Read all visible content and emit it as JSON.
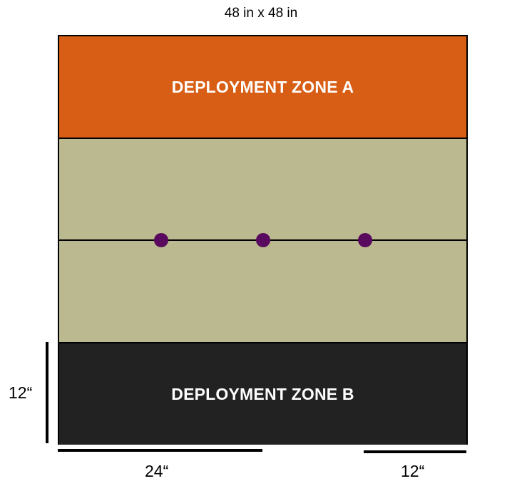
{
  "title": "48 in x 48 in",
  "zones": {
    "a_label": "DEPLOYMENT ZONE A",
    "b_label": "DEPLOYMENT ZONE B"
  },
  "dimensions": {
    "zone_depth_label": "12“",
    "center_offset_label": "24“",
    "edge_offset_label": "12“"
  },
  "objectives": [
    {
      "name": "objective-marker-left"
    },
    {
      "name": "objective-marker-center"
    },
    {
      "name": "objective-marker-right"
    }
  ],
  "colors": {
    "zone_a": "#d85e16",
    "no_mans_land": "#bbb98f",
    "zone_b": "#222222",
    "objective": "#5a0a5e"
  }
}
